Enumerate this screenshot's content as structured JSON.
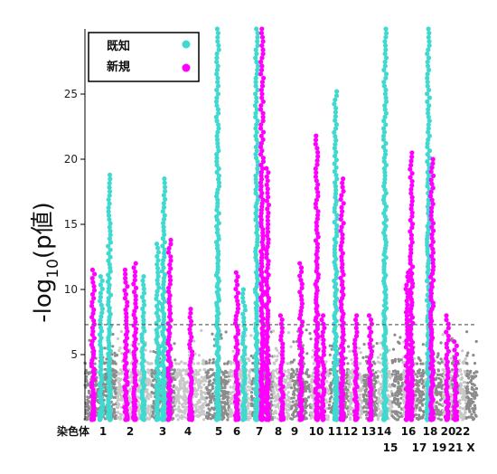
{
  "chart_data": {
    "type": "scatter",
    "title": "",
    "ylabel": "-log10(p値)",
    "ylabel_main": "-log",
    "ylabel_sub": "10",
    "ylabel_tail": "(p値)",
    "xlabel": "染色体",
    "ylim": [
      0,
      30
    ],
    "yticks": [
      5,
      10,
      15,
      20,
      25
    ],
    "threshold": 7.3,
    "legend": [
      {
        "name": "既知",
        "color": "#3fd9cf"
      },
      {
        "name": "新規",
        "color": "#ff00ff"
      }
    ],
    "legend_position": "top-left",
    "colors": {
      "known": "#3fd9cf",
      "novel": "#ff00ff",
      "bg_dark": "#8c8c8c",
      "bg_light": "#c8c8c8",
      "threshold": "#666666"
    },
    "chromosome_labels": [
      {
        "label": "1",
        "row": 1
      },
      {
        "label": "2",
        "row": 1
      },
      {
        "label": "3",
        "row": 1
      },
      {
        "label": "4",
        "row": 1
      },
      {
        "label": "5",
        "row": 1
      },
      {
        "label": "6",
        "row": 1
      },
      {
        "label": "7",
        "row": 1
      },
      {
        "label": "8",
        "row": 1
      },
      {
        "label": "9",
        "row": 1
      },
      {
        "label": "10",
        "row": 1
      },
      {
        "label": "11",
        "row": 1
      },
      {
        "label": "12",
        "row": 1
      },
      {
        "label": "13",
        "row": 1
      },
      {
        "label": "14",
        "row": 1
      },
      {
        "label": "15",
        "row": 2
      },
      {
        "label": "16",
        "row": 1
      },
      {
        "label": "17",
        "row": 2
      },
      {
        "label": "18",
        "row": 1
      },
      {
        "label": "19",
        "row": 2
      },
      {
        "label": "20",
        "row": 1
      },
      {
        "label": "21",
        "row": 2
      },
      {
        "label": "22",
        "row": 1
      },
      {
        "label": "X",
        "row": 2
      }
    ],
    "peaks": [
      {
        "chr": "1",
        "type": "novel",
        "top": 11.5
      },
      {
        "chr": "1",
        "type": "known",
        "top": 11
      },
      {
        "chr": "1",
        "type": "known",
        "top": 18.8
      },
      {
        "chr": "2",
        "type": "novel",
        "top": 11.5
      },
      {
        "chr": "2",
        "type": "novel",
        "top": 12
      },
      {
        "chr": "2",
        "type": "known",
        "top": 11
      },
      {
        "chr": "3",
        "type": "known",
        "top": 13.5
      },
      {
        "chr": "3",
        "type": "known",
        "top": 18.5
      },
      {
        "chr": "3",
        "type": "novel",
        "top": 13.8
      },
      {
        "chr": "4",
        "type": "novel",
        "top": 8.5
      },
      {
        "chr": "5",
        "type": "known",
        "top": 30
      },
      {
        "chr": "6",
        "type": "novel",
        "top": 11.3
      },
      {
        "chr": "6",
        "type": "known",
        "top": 10
      },
      {
        "chr": "7",
        "type": "known",
        "top": 30
      },
      {
        "chr": "7",
        "type": "novel",
        "top": 30
      },
      {
        "chr": "7",
        "type": "novel",
        "top": 19.3
      },
      {
        "chr": "8",
        "type": "novel",
        "top": 8
      },
      {
        "chr": "9",
        "type": "novel",
        "top": 12
      },
      {
        "chr": "10",
        "type": "novel",
        "top": 21.8
      },
      {
        "chr": "10",
        "type": "novel",
        "top": 8
      },
      {
        "chr": "11",
        "type": "known",
        "top": 25.2
      },
      {
        "chr": "11",
        "type": "novel",
        "top": 18.5
      },
      {
        "chr": "12",
        "type": "novel",
        "top": 8
      },
      {
        "chr": "13",
        "type": "novel",
        "top": 8
      },
      {
        "chr": "14",
        "type": "known",
        "top": 30
      },
      {
        "chr": "16",
        "type": "novel",
        "top": 11.3
      },
      {
        "chr": "16",
        "type": "novel",
        "top": 20.5
      },
      {
        "chr": "18",
        "type": "known",
        "top": 30
      },
      {
        "chr": "18",
        "type": "novel",
        "top": 20
      },
      {
        "chr": "20",
        "type": "novel",
        "top": 8
      },
      {
        "chr": "21",
        "type": "novel",
        "top": 6
      }
    ]
  }
}
